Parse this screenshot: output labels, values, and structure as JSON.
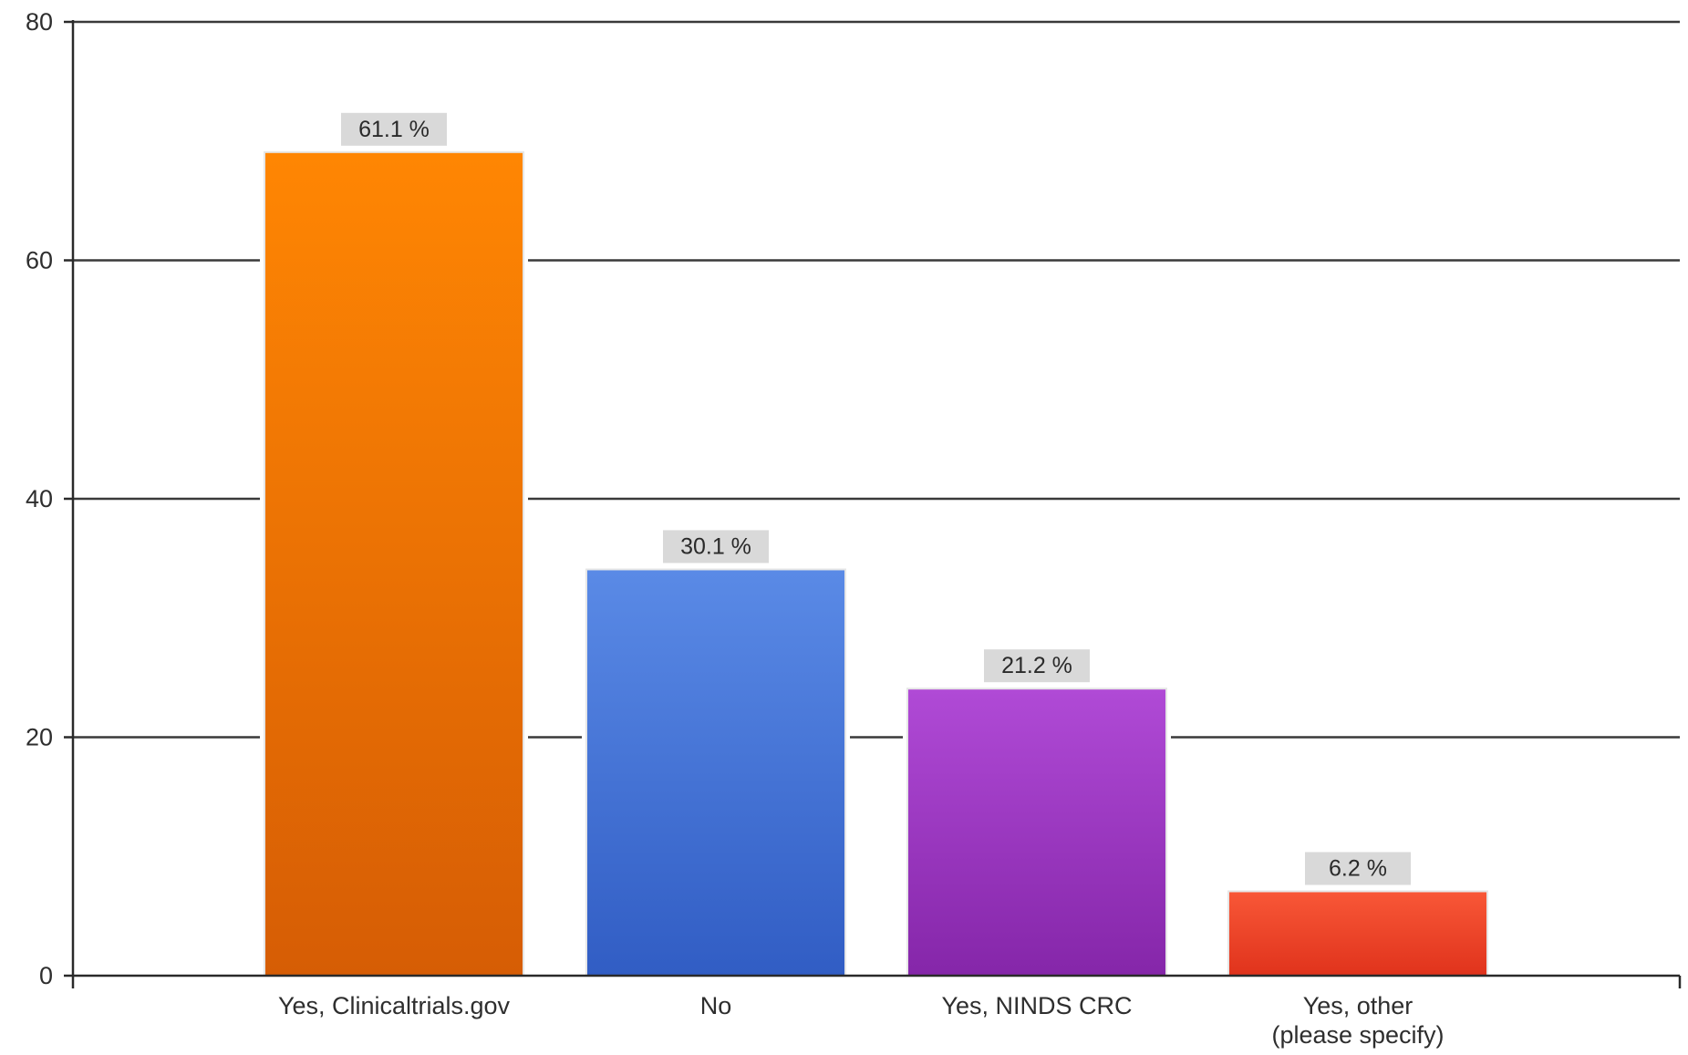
{
  "chart_data": {
    "type": "bar",
    "title": "",
    "xlabel": "",
    "ylabel": "",
    "categories": [
      "Yes, Clinicaltrials.gov",
      "No",
      "Yes, NINDS CRC",
      "Yes, other\n(please specify)"
    ],
    "values": [
      69,
      34,
      24,
      7
    ],
    "data_labels": [
      "61.1 %",
      "30.1 %",
      "21.2 %",
      "6.2 %"
    ],
    "ylim": [
      0,
      80
    ],
    "yticks": [
      0,
      20,
      40,
      60,
      80
    ],
    "grid": true,
    "legend": "none",
    "colors": [
      [
        "#ff8603",
        "#d65d05"
      ],
      [
        "#5a8ae6",
        "#315dc4"
      ],
      [
        "#b04ad6",
        "#8526a9"
      ],
      [
        "#f85737",
        "#e0331c"
      ]
    ],
    "label_box_color": "#d9d9d9"
  }
}
